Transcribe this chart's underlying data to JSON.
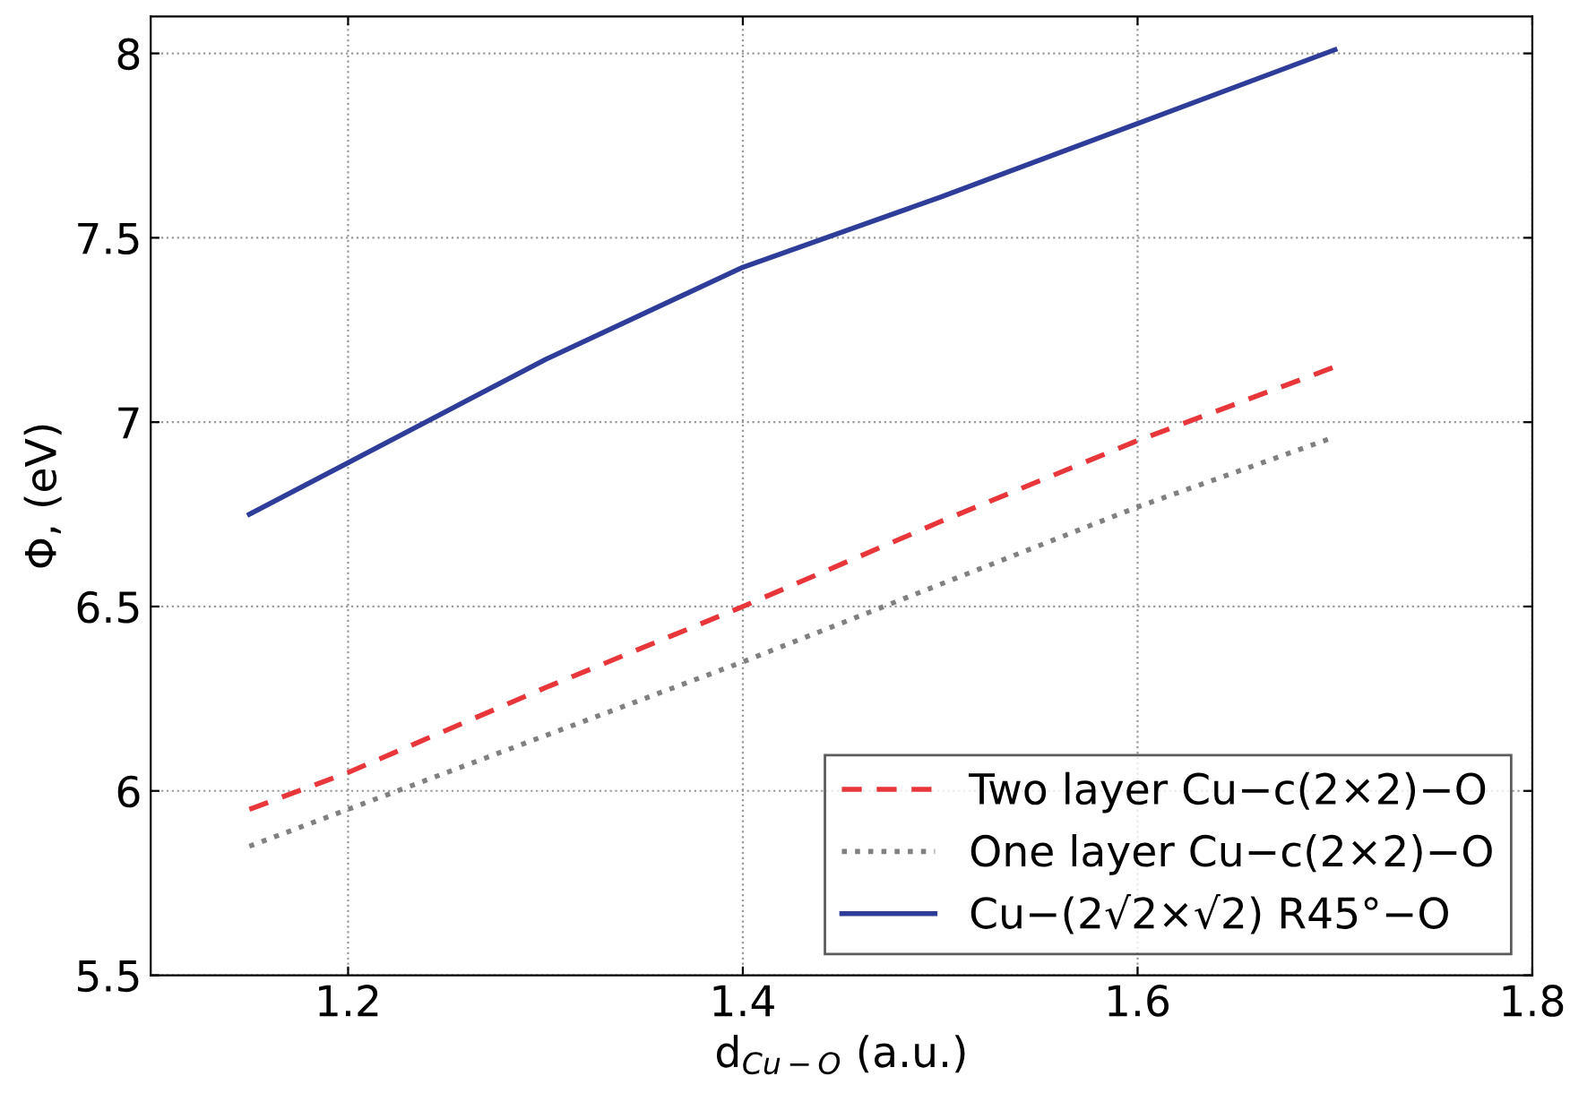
{
  "chart_data": {
    "type": "line",
    "xlabel": "d$_{Cu−O}$ (a.u.)",
    "ylabel": "Φ, (eV)",
    "xlim": [
      1.1,
      1.8
    ],
    "ylim": [
      5.5,
      8.1
    ],
    "xticks": [
      1.2,
      1.4,
      1.6,
      1.8
    ],
    "yticks": [
      5.5,
      6,
      6.5,
      7,
      7.5,
      8
    ],
    "grid": true,
    "legend": "bottom right",
    "series": [
      {
        "name": "Two layer Cu−c(2×2)−O",
        "color": "#e8363a",
        "line_style": "dashed",
        "x": [
          1.15,
          1.2,
          1.3,
          1.4,
          1.5,
          1.6,
          1.7
        ],
        "values": [
          5.95,
          6.05,
          6.28,
          6.5,
          6.73,
          6.95,
          7.15
        ]
      },
      {
        "name": "One layer Cu−c(2×2)−O",
        "color": "#808080",
        "line_style": "dotted",
        "x": [
          1.15,
          1.2,
          1.3,
          1.4,
          1.5,
          1.6,
          1.7
        ],
        "values": [
          5.85,
          5.95,
          6.15,
          6.35,
          6.56,
          6.77,
          6.96
        ]
      },
      {
        "name": "Cu−(2√2×√2) R45°−O",
        "color": "#2e3d9a",
        "line_style": "solid",
        "x": [
          1.15,
          1.2,
          1.3,
          1.4,
          1.5,
          1.6,
          1.7
        ],
        "values": [
          6.75,
          6.89,
          7.17,
          7.42,
          7.61,
          7.81,
          8.01
        ]
      }
    ]
  }
}
